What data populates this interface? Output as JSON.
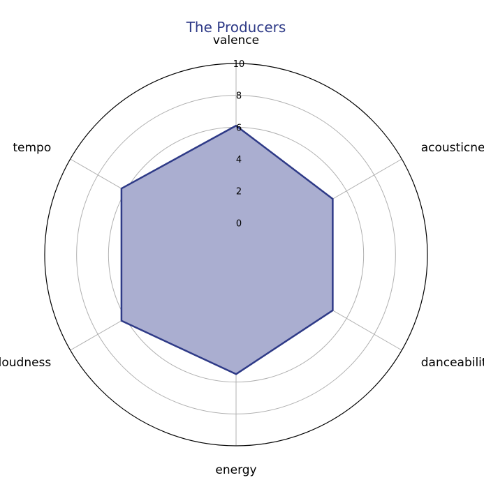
{
  "chart_data": {
    "type": "radar",
    "title": "The Producers",
    "axes": [
      "valence",
      "acousticness",
      "danceability",
      "energy",
      "loudness",
      "tempo"
    ],
    "series": [
      {
        "values": [
          6.1,
          5.0,
          5.0,
          5.5,
          6.3,
          6.3
        ]
      }
    ],
    "r_ticks": [
      0,
      2,
      4,
      6,
      8,
      10
    ],
    "rlim": [
      -2,
      10
    ],
    "grid": true,
    "colors": {
      "line": "#2e3a87",
      "fill": "#aaaed0",
      "title": "#2e3a87",
      "grid": "#b0b0b0",
      "frame": "#000000"
    }
  }
}
